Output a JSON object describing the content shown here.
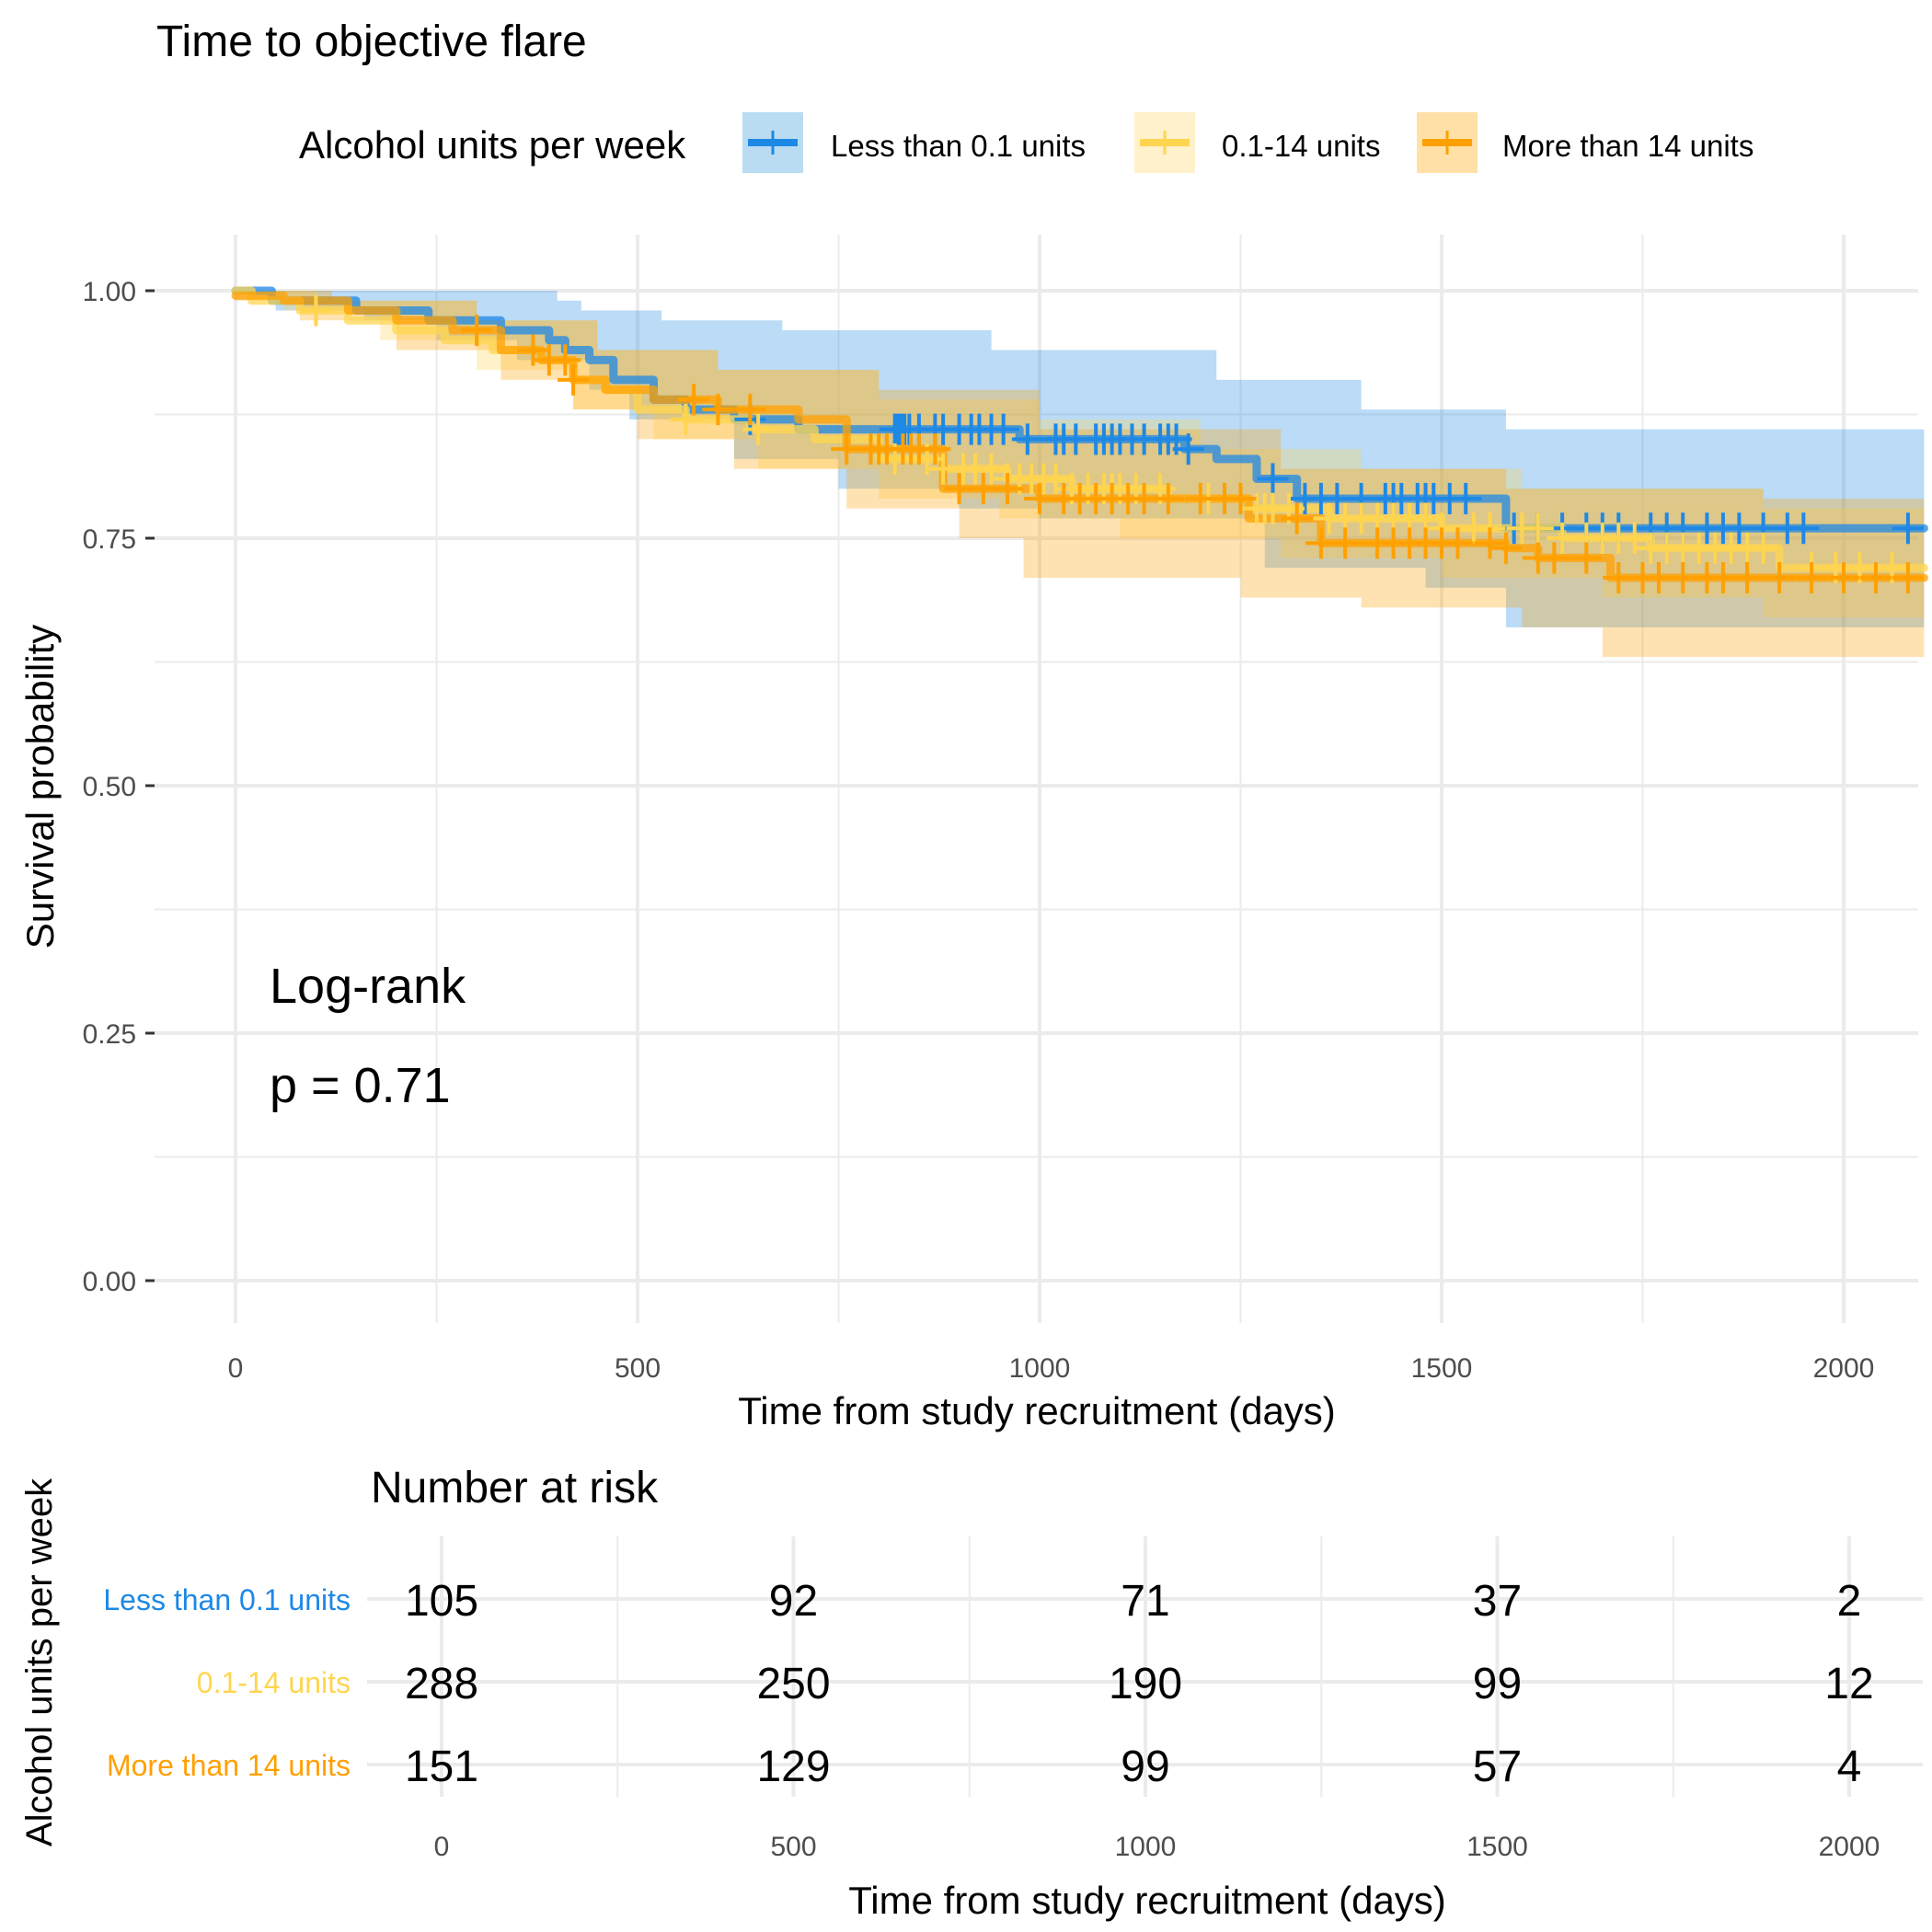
{
  "chart_data": [
    {
      "type": "line",
      "subtype": "kaplan-meier survival curve",
      "title": "Time to objective flare",
      "xlabel": "Time from study recruitment (days)",
      "ylabel": "Survival probability",
      "xlim": [
        -100,
        2100
      ],
      "ylim": [
        -0.04,
        1.04
      ],
      "x_ticks": [
        0,
        500,
        1000,
        1500,
        2000
      ],
      "x_tick_labels": [
        "0",
        "500",
        "1000",
        "1500",
        "2000"
      ],
      "y_ticks": [
        0,
        0.25,
        0.5,
        0.75,
        1.0
      ],
      "y_tick_labels": [
        "0.00",
        "0.25",
        "0.50",
        "0.75",
        "1.00"
      ],
      "grid": true,
      "legend": {
        "title": "Alcohol units per week",
        "placement": "top",
        "entries": [
          "Less than 0.1 units",
          "0.1-14 units",
          "More than 14 units"
        ]
      },
      "annotation": {
        "line1": "Log-rank",
        "line2": "p = 0.71"
      },
      "series": [
        {
          "name": "Less than 0.1 units",
          "color": "#1E88E5",
          "fill_color": "#BADCF3",
          "steps": [
            [
              0,
              1.0
            ],
            [
              45,
              0.99
            ],
            [
              150,
              0.98
            ],
            [
              240,
              0.97
            ],
            [
              330,
              0.96
            ],
            [
              390,
              0.95
            ],
            [
              410,
              0.94
            ],
            [
              440,
              0.93
            ],
            [
              470,
              0.91
            ],
            [
              520,
              0.89
            ],
            [
              560,
              0.88
            ],
            [
              620,
              0.87
            ],
            [
              700,
              0.86
            ],
            [
              975,
              0.85
            ],
            [
              1180,
              0.84
            ],
            [
              1220,
              0.83
            ],
            [
              1270,
              0.81
            ],
            [
              1320,
              0.79
            ],
            [
              1580,
              0.76
            ],
            [
              2100,
              0.76
            ]
          ],
          "upper": [
            [
              0,
              1.0
            ],
            [
              30,
              1.0
            ],
            [
              400,
              0.99
            ],
            [
              430,
              0.98
            ],
            [
              530,
              0.97
            ],
            [
              680,
              0.96
            ],
            [
              940,
              0.94
            ],
            [
              1220,
              0.91
            ],
            [
              1400,
              0.88
            ],
            [
              1580,
              0.86
            ],
            [
              2100,
              0.86
            ]
          ],
          "lower": [
            [
              0,
              1.0
            ],
            [
              50,
              0.98
            ],
            [
              160,
              0.97
            ],
            [
              250,
              0.95
            ],
            [
              350,
              0.93
            ],
            [
              440,
              0.9
            ],
            [
              490,
              0.87
            ],
            [
              620,
              0.83
            ],
            [
              750,
              0.8
            ],
            [
              900,
              0.78
            ],
            [
              1000,
              0.77
            ],
            [
              1280,
              0.72
            ],
            [
              1480,
              0.7
            ],
            [
              1580,
              0.66
            ],
            [
              2100,
              0.66
            ]
          ],
          "censor_times": [
            640,
            820,
            824,
            828,
            832,
            838,
            850,
            870,
            880,
            900,
            915,
            925,
            940,
            955,
            985,
            1020,
            1030,
            1045,
            1070,
            1080,
            1090,
            1100,
            1115,
            1130,
            1150,
            1160,
            1170,
            1185,
            1290,
            1330,
            1350,
            1370,
            1400,
            1430,
            1440,
            1450,
            1470,
            1480,
            1490,
            1510,
            1530,
            1590,
            1620,
            1650,
            1680,
            1700,
            1720,
            1760,
            1780,
            1800,
            1830,
            1850,
            1870,
            1900,
            1930,
            1950,
            2080
          ]
        },
        {
          "name": "0.1-14 units",
          "color": "#FFD54F",
          "fill_color": "#FFF1CB",
          "steps": [
            [
              0,
              1.0
            ],
            [
              20,
              0.99
            ],
            [
              80,
              0.98
            ],
            [
              140,
              0.97
            ],
            [
              200,
              0.96
            ],
            [
              260,
              0.95
            ],
            [
              320,
              0.94
            ],
            [
              380,
              0.93
            ],
            [
              420,
              0.91
            ],
            [
              460,
              0.9
            ],
            [
              500,
              0.88
            ],
            [
              560,
              0.87
            ],
            [
              640,
              0.86
            ],
            [
              720,
              0.85
            ],
            [
              800,
              0.83
            ],
            [
              880,
              0.82
            ],
            [
              960,
              0.81
            ],
            [
              1040,
              0.8
            ],
            [
              1160,
              0.79
            ],
            [
              1260,
              0.78
            ],
            [
              1360,
              0.77
            ],
            [
              1500,
              0.76
            ],
            [
              1650,
              0.75
            ],
            [
              1760,
              0.74
            ],
            [
              1920,
              0.72
            ],
            [
              2100,
              0.72
            ]
          ],
          "upper": [
            [
              0,
              1.0
            ],
            [
              100,
              0.99
            ],
            [
              300,
              0.97
            ],
            [
              450,
              0.94
            ],
            [
              600,
              0.92
            ],
            [
              800,
              0.89
            ],
            [
              1000,
              0.87
            ],
            [
              1200,
              0.84
            ],
            [
              1400,
              0.82
            ],
            [
              1600,
              0.8
            ],
            [
              1900,
              0.78
            ],
            [
              2100,
              0.78
            ]
          ],
          "lower": [
            [
              0,
              1.0
            ],
            [
              60,
              0.98
            ],
            [
              180,
              0.95
            ],
            [
              300,
              0.92
            ],
            [
              420,
              0.88
            ],
            [
              520,
              0.85
            ],
            [
              650,
              0.82
            ],
            [
              800,
              0.79
            ],
            [
              950,
              0.77
            ],
            [
              1100,
              0.75
            ],
            [
              1300,
              0.73
            ],
            [
              1500,
              0.71
            ],
            [
              1700,
              0.69
            ],
            [
              1900,
              0.67
            ],
            [
              2100,
              0.67
            ]
          ],
          "censor_times": [
            100,
            560,
            650,
            820,
            860,
            880,
            905,
            920,
            940,
            960,
            975,
            990,
            1005,
            1020,
            1040,
            1060,
            1080,
            1090,
            1100,
            1120,
            1150,
            1200,
            1210,
            1230,
            1250,
            1270,
            1280,
            1290,
            1310,
            1360,
            1380,
            1400,
            1420,
            1440,
            1460,
            1480,
            1500,
            1540,
            1560,
            1600,
            1620,
            1650,
            1680,
            1700,
            1720,
            1740,
            1760,
            1780,
            1800,
            1820,
            1840,
            1860,
            1880,
            1900,
            1960,
            1990,
            2020,
            2060
          ]
        },
        {
          "name": "More than 14 units",
          "color": "#FFA000",
          "fill_color": "#FFE1A8",
          "steps": [
            [
              0,
              0.995
            ],
            [
              60,
              0.99
            ],
            [
              140,
              0.98
            ],
            [
              200,
              0.97
            ],
            [
              270,
              0.96
            ],
            [
              330,
              0.94
            ],
            [
              380,
              0.93
            ],
            [
              420,
              0.91
            ],
            [
              460,
              0.9
            ],
            [
              520,
              0.89
            ],
            [
              600,
              0.88
            ],
            [
              700,
              0.87
            ],
            [
              760,
              0.84
            ],
            [
              880,
              0.8
            ],
            [
              1000,
              0.79
            ],
            [
              1260,
              0.77
            ],
            [
              1350,
              0.745
            ],
            [
              1580,
              0.74
            ],
            [
              1620,
              0.73
            ],
            [
              1710,
              0.71
            ],
            [
              2100,
              0.71
            ]
          ],
          "upper": [
            [
              0,
              1.0
            ],
            [
              120,
              0.99
            ],
            [
              300,
              0.97
            ],
            [
              450,
              0.94
            ],
            [
              600,
              0.92
            ],
            [
              800,
              0.9
            ],
            [
              1000,
              0.86
            ],
            [
              1300,
              0.82
            ],
            [
              1580,
              0.8
            ],
            [
              1900,
              0.79
            ],
            [
              2100,
              0.79
            ]
          ],
          "lower": [
            [
              0,
              0.99
            ],
            [
              80,
              0.97
            ],
            [
              200,
              0.94
            ],
            [
              330,
              0.91
            ],
            [
              420,
              0.88
            ],
            [
              500,
              0.85
            ],
            [
              620,
              0.82
            ],
            [
              760,
              0.78
            ],
            [
              900,
              0.75
            ],
            [
              980,
              0.71
            ],
            [
              1250,
              0.69
            ],
            [
              1400,
              0.68
            ],
            [
              1600,
              0.66
            ],
            [
              1700,
              0.63
            ],
            [
              2100,
              0.63
            ]
          ],
          "censor_times": [
            300,
            370,
            390,
            410,
            420,
            570,
            600,
            640,
            760,
            790,
            800,
            810,
            830,
            840,
            850,
            870,
            900,
            930,
            960,
            1000,
            1030,
            1050,
            1070,
            1090,
            1110,
            1130,
            1160,
            1200,
            1230,
            1250,
            1320,
            1350,
            1380,
            1420,
            1440,
            1460,
            1480,
            1500,
            1520,
            1560,
            1580,
            1620,
            1640,
            1680,
            1720,
            1750,
            1770,
            1800,
            1830,
            1850,
            1880,
            1920,
            1960,
            2000,
            2040,
            2080
          ]
        }
      ]
    },
    {
      "type": "table",
      "title": "Number at risk",
      "ylabel": "Alcohol units per week",
      "xlabel": "Time from study recruitment (days)",
      "x_ticks": [
        0,
        500,
        1000,
        1500,
        2000
      ],
      "x_tick_labels": [
        "0",
        "500",
        "1000",
        "1500",
        "2000"
      ],
      "rows": [
        {
          "name": "Less than 0.1 units",
          "color": "#1E88E5",
          "values": [
            105,
            92,
            71,
            37,
            2
          ]
        },
        {
          "name": "0.1-14 units",
          "color": "#FFD54F",
          "values": [
            288,
            250,
            190,
            99,
            12
          ]
        },
        {
          "name": "More than 14 units",
          "color": "#FFA000",
          "values": [
            151,
            129,
            99,
            57,
            4
          ]
        }
      ]
    }
  ]
}
